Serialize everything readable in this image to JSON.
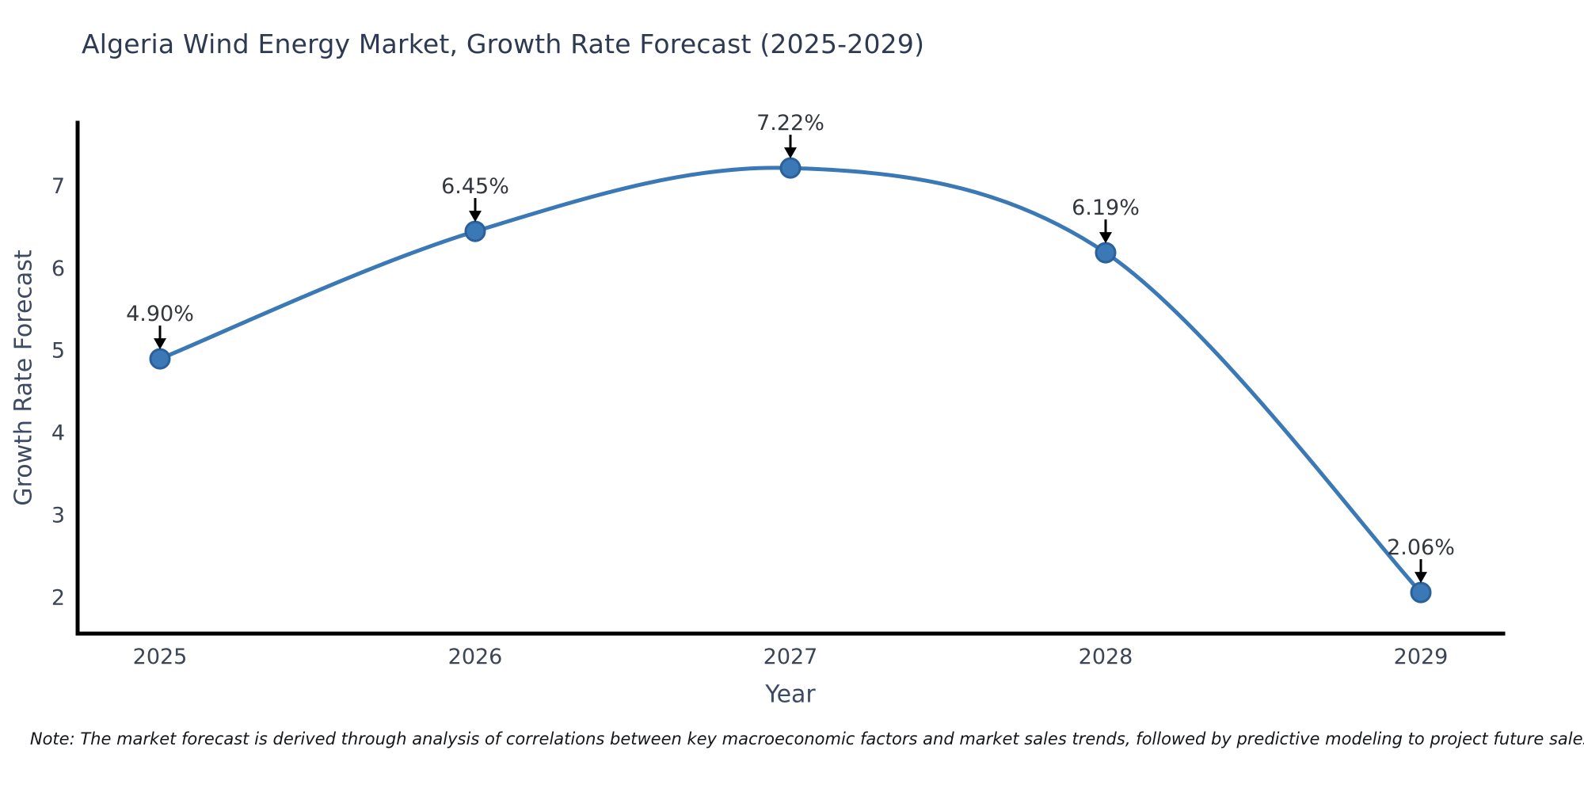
{
  "figure": {
    "title": "Algeria Wind Energy Market, Growth Rate Forecast (2025-2029)",
    "note": "Note: The market forecast is derived through analysis of correlations between key macroeconomic factors and market sales trends, followed by predictive modeling to project future sales."
  },
  "chart_data": {
    "type": "line",
    "title": "Algeria Wind Energy Market, Growth Rate Forecast (2025-2029)",
    "xlabel": "Year",
    "ylabel": "Growth Rate Forecast",
    "categories": [
      "2025",
      "2026",
      "2027",
      "2028",
      "2029"
    ],
    "values": [
      4.9,
      6.45,
      7.22,
      6.19,
      2.06
    ],
    "data_labels": [
      "4.90%",
      "6.45%",
      "7.22%",
      "6.19%",
      "2.06%"
    ],
    "yticks": [
      2,
      3,
      4,
      5,
      6,
      7
    ],
    "ylim": [
      1.56,
      7.77
    ],
    "grid": false,
    "legend_position": "none",
    "line_color": "#3a79b6",
    "marker_color": "#3a79b6",
    "marker_edge_color": "#2b619b",
    "annotation_arrow_color": "#000000",
    "spine_color": "#000000",
    "note": "Note: The market forecast is derived through analysis of correlations between key macroeconomic factors and market sales trends, followed by predictive modeling to project future sales."
  }
}
